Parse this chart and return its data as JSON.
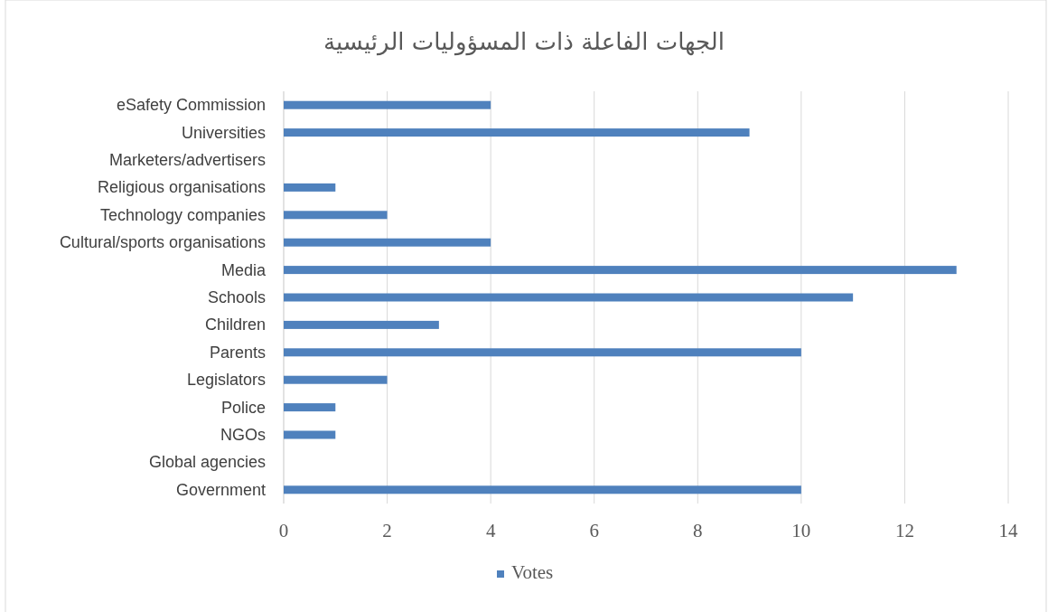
{
  "chart_data": {
    "type": "bar",
    "orientation": "horizontal",
    "title": "الجهات الفاعلة ذات المسؤوليات الرئيسية",
    "categories": [
      "eSafety Commission",
      "Universities",
      "Marketers/advertisers",
      "Religious organisations",
      "Technology companies",
      "Cultural/sports organisations",
      "Media",
      "Schools",
      "Children",
      "Parents",
      "Legislators",
      "Police",
      "NGOs",
      "Global agencies",
      "Government"
    ],
    "series": [
      {
        "name": "Votes",
        "color": "#4f81bd",
        "values": [
          4,
          9,
          0,
          1,
          2,
          4,
          13,
          11,
          3,
          10,
          2,
          1,
          1,
          0,
          10
        ]
      }
    ],
    "xlim": [
      0,
      14
    ],
    "xticks": [
      0,
      2,
      4,
      6,
      8,
      10,
      12,
      14
    ],
    "grid": "x",
    "legend": "bottom"
  }
}
